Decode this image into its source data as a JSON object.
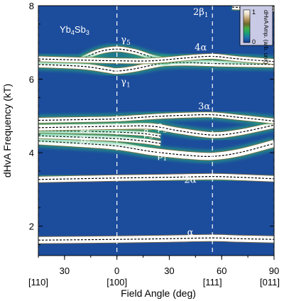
{
  "chart_data": {
    "type": "heatmap",
    "title": "Yb4Sb3",
    "title_parts": [
      "Yb",
      "4",
      "Sb",
      "3"
    ],
    "xlabel": "Field Angle (deg)",
    "ylabel": "dHvA Frequency (kT)",
    "xlim": [
      -45,
      90
    ],
    "ylim": [
      1.2,
      8.0
    ],
    "x_ticks": [
      {
        "x": -30,
        "label": "30"
      },
      {
        "x": 0,
        "label": "0"
      },
      {
        "x": 30,
        "label": "30"
      },
      {
        "x": 60,
        "label": "60"
      },
      {
        "x": 90,
        "label": "90"
      }
    ],
    "y_ticks": [
      {
        "y": 2,
        "label": "2"
      },
      {
        "y": 4,
        "label": "4"
      },
      {
        "y": 6,
        "label": "6"
      },
      {
        "y": 8,
        "label": "8"
      }
    ],
    "direction_labels": [
      {
        "x": -45,
        "label": "[110]"
      },
      {
        "x": 0,
        "label": "[100]"
      },
      {
        "x": 54.7,
        "label": "[111]"
      },
      {
        "x": 90,
        "label": "[011]"
      }
    ],
    "direction_lines_x": [
      -45,
      0,
      54.7,
      90
    ],
    "colorbar": {
      "label": "dHvA Amp. (arb. unit)",
      "max_label": "1",
      "min_label": "0",
      "colors": [
        "#1a3a8c",
        "#1f6fb0",
        "#1aa07a",
        "#40b048",
        "#6e6a2c",
        "#b89860",
        "#e8dcc0",
        "#ffffff"
      ]
    },
    "colors": {
      "background": "#1c4c9c",
      "branch_glow": "#2ab87a",
      "branch_core": "#ffffff",
      "branch_warm": "#8a6a2a",
      "dashed": "#000000"
    },
    "branches": [
      {
        "name": "α",
        "label_at": [
          42,
          1.75
        ],
        "points": [
          [
            -45,
            1.62
          ],
          [
            0,
            1.64
          ],
          [
            30,
            1.66
          ],
          [
            54.7,
            1.68
          ],
          [
            70,
            1.66
          ],
          [
            90,
            1.64
          ]
        ],
        "width": 9
      },
      {
        "name": "2α",
        "label_at": [
          42,
          3.18
        ],
        "points": [
          [
            -45,
            3.27
          ],
          [
            0,
            3.31
          ],
          [
            30,
            3.33
          ],
          [
            54.7,
            3.35
          ],
          [
            70,
            3.33
          ],
          [
            90,
            3.29
          ]
        ],
        "width": 8
      },
      {
        "name": "β1",
        "label_at": [
          26,
          3.85
        ],
        "points": [
          [
            -45,
            4.32
          ],
          [
            -20,
            4.25
          ],
          [
            0,
            4.18
          ],
          [
            20,
            4.03
          ],
          [
            40,
            3.93
          ],
          [
            54.7,
            3.9
          ],
          [
            70,
            4.0
          ],
          [
            90,
            4.25
          ]
        ],
        "width": 10
      },
      {
        "name": "β2",
        "label_at": [
          -18,
          4.26
        ],
        "points": [
          [
            -45,
            4.46
          ],
          [
            -20,
            4.42
          ],
          [
            0,
            4.38
          ],
          [
            15,
            4.32
          ],
          [
            25,
            4.25
          ]
        ],
        "width": 7
      },
      {
        "name": "β3",
        "label_at": [
          18,
          4.45
        ],
        "points": [
          [
            -45,
            4.6
          ],
          [
            -20,
            4.58
          ],
          [
            0,
            4.56
          ],
          [
            15,
            4.52
          ],
          [
            25,
            4.45
          ]
        ],
        "width": 6
      },
      {
        "name": "β4",
        "label_at": [
          -18,
          4.58
        ],
        "points": [
          [
            -45,
            4.72
          ],
          [
            -20,
            4.72
          ],
          [
            0,
            4.7
          ],
          [
            20,
            4.68
          ]
        ],
        "width": 6
      },
      {
        "name": "β5",
        "label_at": [
          26,
          4.6
        ],
        "points": [
          [
            -45,
            4.68
          ],
          [
            0,
            4.72
          ],
          [
            20,
            4.72
          ],
          [
            35,
            4.6
          ],
          [
            54.7,
            4.48
          ],
          [
            70,
            4.55
          ],
          [
            90,
            4.75
          ]
        ],
        "width": 8
      },
      {
        "name": "3α",
        "label_at": [
          50,
          5.18
        ],
        "points": [
          [
            -45,
            4.88
          ],
          [
            -20,
            4.9
          ],
          [
            0,
            4.92
          ],
          [
            20,
            4.98
          ],
          [
            40,
            5.02
          ],
          [
            54.7,
            5.03
          ],
          [
            70,
            4.96
          ],
          [
            90,
            4.86
          ]
        ],
        "width": 7
      },
      {
        "name": "γ1",
        "label_at": [
          5,
          5.85
        ],
        "points": [
          [
            -45,
            6.4
          ],
          [
            -20,
            6.35
          ],
          [
            -5,
            6.25
          ],
          [
            0,
            6.22
          ],
          [
            10,
            6.28
          ],
          [
            25,
            6.42
          ],
          [
            40,
            6.45
          ],
          [
            60,
            6.42
          ],
          [
            90,
            6.4
          ]
        ],
        "width": 8
      },
      {
        "name": "γ5",
        "label_at": [
          5,
          7.0
        ],
        "points": [
          [
            -20,
            6.55
          ],
          [
            -10,
            6.75
          ],
          [
            0,
            6.82
          ],
          [
            10,
            6.75
          ],
          [
            20,
            6.6
          ],
          [
            30,
            6.5
          ]
        ],
        "width": 7
      },
      {
        "name": "4α",
        "label_at": [
          48,
          6.78
        ],
        "points": [
          [
            -45,
            6.55
          ],
          [
            -20,
            6.52
          ],
          [
            0,
            6.5
          ],
          [
            20,
            6.5
          ],
          [
            40,
            6.58
          ],
          [
            54.7,
            6.62
          ],
          [
            70,
            6.55
          ],
          [
            90,
            6.48
          ]
        ],
        "width": 7
      },
      {
        "name": "2β1",
        "label_at": [
          48,
          7.75
        ],
        "points": [
          [
            66,
            7.96
          ],
          [
            78,
            7.93
          ],
          [
            90,
            7.9
          ]
        ],
        "width": 6
      }
    ]
  }
}
